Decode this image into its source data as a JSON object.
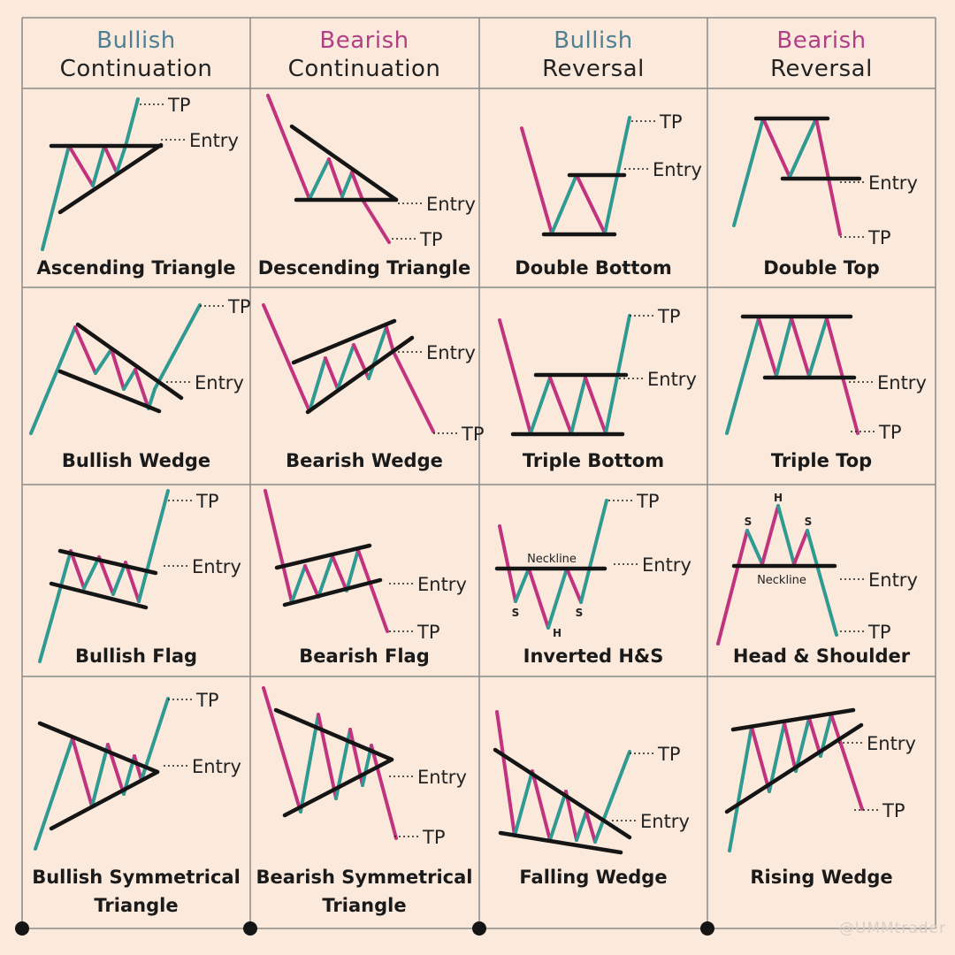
{
  "colors": {
    "background": "#fbe9dc",
    "bullish": "#2f9a92",
    "bearish": "#c2337f",
    "level": "#151515",
    "grid": "#8a8a8a",
    "bullish_text": "#4e7f92",
    "bearish_text": "#b03f86"
  },
  "headers": [
    {
      "kind": "Bullish",
      "type": "Continuation",
      "tone": "bullish"
    },
    {
      "kind": "Bearish",
      "type": "Continuation",
      "tone": "bearish"
    },
    {
      "kind": "Bullish",
      "type": "Reversal",
      "tone": "bullish"
    },
    {
      "kind": "Bearish",
      "type": "Reversal",
      "tone": "bearish"
    }
  ],
  "labels": {
    "tp": "TP",
    "entry": "Entry",
    "neckline": "Neckline",
    "head": "H",
    "shoulder": "S"
  },
  "patterns": [
    {
      "caption": "Ascending Triangle"
    },
    {
      "caption": "Descending Triangle"
    },
    {
      "caption": "Double Bottom"
    },
    {
      "caption": "Double Top"
    },
    {
      "caption": "Bullish Wedge"
    },
    {
      "caption": "Bearish Wedge"
    },
    {
      "caption": "Triple Bottom"
    },
    {
      "caption": "Triple Top"
    },
    {
      "caption": "Bullish Flag"
    },
    {
      "caption": "Bearish Flag"
    },
    {
      "caption": "Inverted H&S"
    },
    {
      "caption": "Head & Shoulder"
    },
    {
      "caption": "Bullish Symmetrical Triangle"
    },
    {
      "caption": "Bearish Symmetrical Triangle"
    },
    {
      "caption": "Falling Wedge"
    },
    {
      "caption": "Rising Wedge"
    }
  ],
  "watermark": "@UMMtrader"
}
